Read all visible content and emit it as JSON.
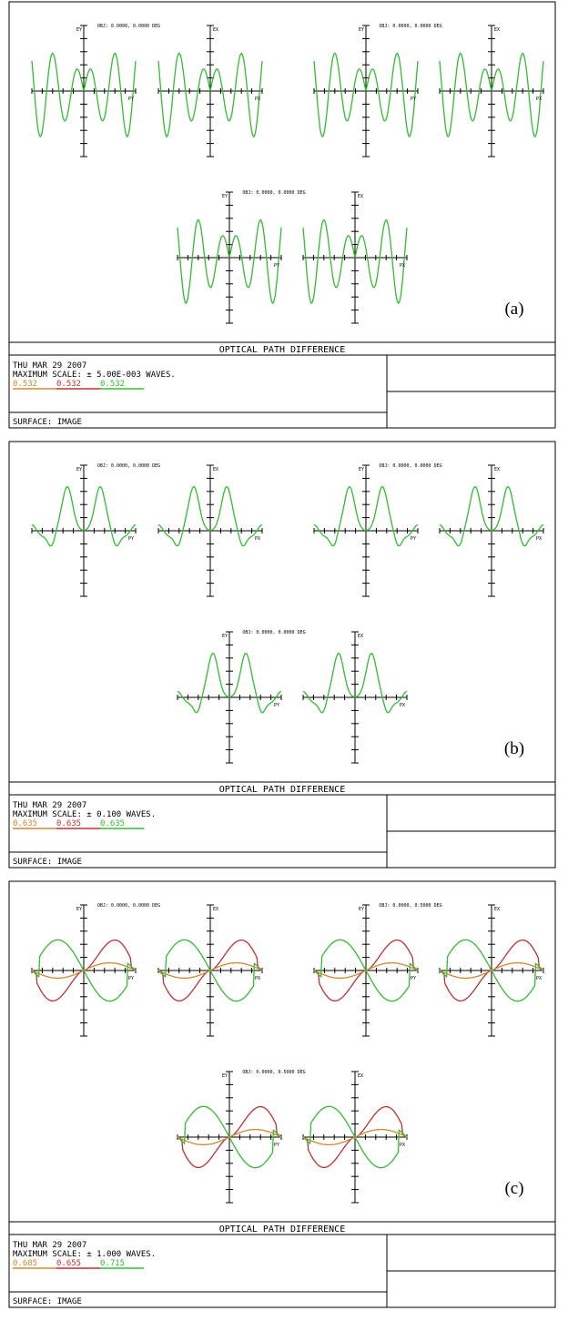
{
  "colors": {
    "green": "#33bb33",
    "red": "#bb3333",
    "orange": "#cc8833",
    "frame": "#000000"
  },
  "panels": [
    {
      "label": "(a)",
      "header": "OPTICAL PATH DIFFERENCE",
      "date": "THU MAR 29 2007",
      "scale": "MAXIMUM SCALE: ± 5.00E-003 WAVES.",
      "wavelengths": [
        "0.532",
        "0.532",
        "0.532"
      ],
      "surface": "SURFACE: IMAGE",
      "field_labels": [
        "OBJ: 0.0000, 0.0000 DEG",
        "OBJ: 0.0000, 0.0000 DEG",
        "OBJ: 0.0000, 0.0000 DEG"
      ],
      "curve_shape": "a"
    },
    {
      "label": "(b)",
      "header": "OPTICAL PATH DIFFERENCE",
      "date": "THU MAR 29 2007",
      "scale": "MAXIMUM SCALE: ± 0.100 WAVES.",
      "wavelengths": [
        "0.635",
        "0.635",
        "0.635"
      ],
      "surface": "SURFACE: IMAGE",
      "field_labels": [
        "OBJ: 0.0000, 0.0000 DEG",
        "OBJ: 0.0000, 0.0000 DEG",
        "OBJ: 0.0000, 0.0000 DEG"
      ],
      "curve_shape": "b"
    },
    {
      "label": "(c)",
      "header": "OPTICAL PATH DIFFERENCE",
      "date": "THU MAR 29 2007",
      "scale": "MAXIMUM SCALE: ± 1.000 WAVES.",
      "wavelengths": [
        "0.685",
        "0.655",
        "0.715"
      ],
      "surface": "SURFACE: IMAGE",
      "field_labels": [
        "OBJ: 0.0000, 0.0000 DEG",
        "OBJ: 0.0000, 0.5000 DEG",
        "OBJ: 0.0000, 0.5000 DEG"
      ],
      "curve_shape": "c"
    }
  ],
  "axis_labels": {
    "ey": "EY",
    "ex": "EX",
    "py": "PY",
    "px": "PX"
  },
  "chart_data": [
    {
      "type": "line",
      "title": "OPTICAL PATH DIFFERENCE",
      "label": "(a)",
      "ylim": [
        -0.005,
        0.005
      ],
      "ylabel": "WAVES"
    },
    {
      "type": "line",
      "title": "OPTICAL PATH DIFFERENCE",
      "label": "(b)",
      "ylim": [
        -0.1,
        0.1
      ],
      "ylabel": "WAVES"
    },
    {
      "type": "line",
      "title": "OPTICAL PATH DIFFERENCE",
      "label": "(c)",
      "ylim": [
        -1.0,
        1.0
      ],
      "ylabel": "WAVES"
    }
  ]
}
